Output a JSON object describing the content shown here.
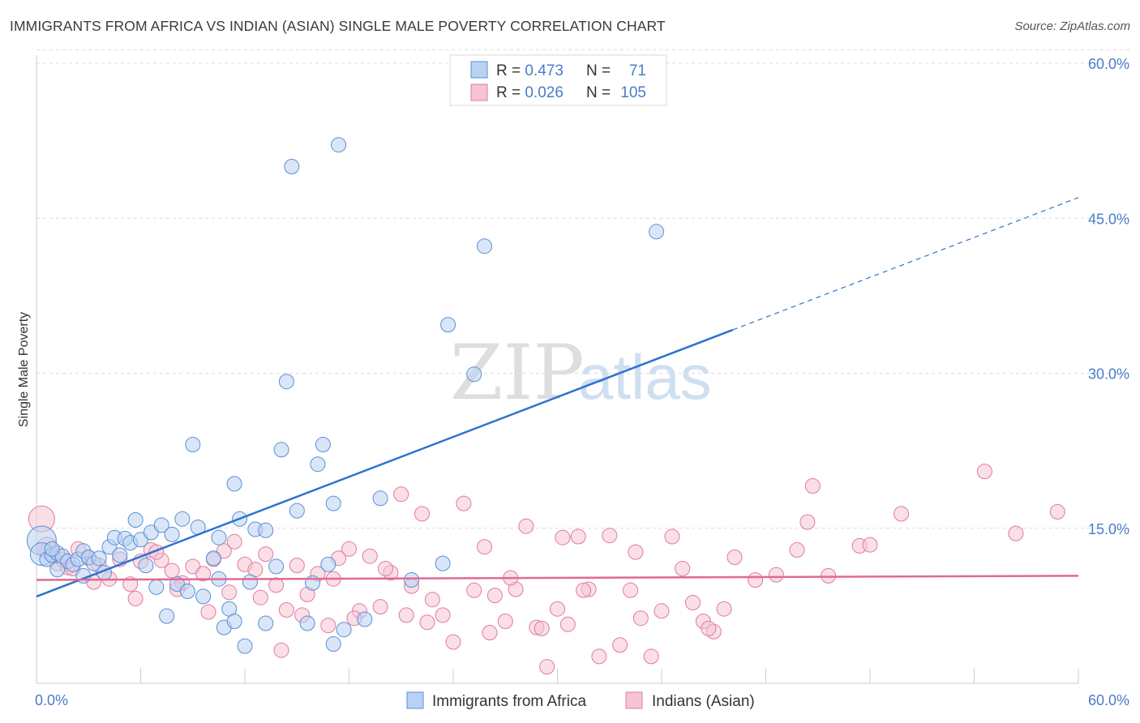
{
  "title": "IMMIGRANTS FROM AFRICA VS INDIAN (ASIAN) SINGLE MALE POVERTY CORRELATION CHART",
  "source": "Source: ZipAtlas.com",
  "watermark": {
    "zip": "ZIP",
    "atlas": "atlas"
  },
  "colors": {
    "blue": "#5b8fd6",
    "blue_fill": "#b9d1f3",
    "blue_line": "#2f72d0",
    "pink": "#e07ba0",
    "pink_fill": "#f6c4d4",
    "pink_line": "#e06a93",
    "tick_label": "#4a7cc9",
    "grid": "#dcdcdc"
  },
  "legend": {
    "rows": [
      {
        "r_label": "R = ",
        "r_value": "0.473",
        "n_label": "N = ",
        "n_value": "71",
        "color": "blue"
      },
      {
        "r_label": "R = ",
        "r_value": "0.026",
        "n_label": "N = ",
        "n_value": "105",
        "color": "pink"
      }
    ]
  },
  "chart_data": {
    "type": "scatter",
    "title": "IMMIGRANTS FROM AFRICA VS INDIAN (ASIAN) SINGLE MALE POVERTY CORRELATION CHART",
    "xlabel": "",
    "ylabel": "Single Male Poverty",
    "xlim": [
      0,
      60
    ],
    "ylim": [
      0,
      60
    ],
    "x_tick_labels": [
      "0.0%",
      "60.0%"
    ],
    "y_ticks": [
      15,
      30,
      45,
      60
    ],
    "y_tick_labels": [
      "15.0%",
      "30.0%",
      "45.0%",
      "60.0%"
    ],
    "grid": "horizontal dashed",
    "legend_position": "top-center",
    "series": [
      {
        "name": "Immigrants from Africa",
        "color": "blue",
        "R": 0.473,
        "N": 71,
        "trend": {
          "x0": 0,
          "y0": 8.4,
          "x1": 40.1,
          "y1": 34.2,
          "dash_to_x": 60,
          "dash_to_y": 47.0
        },
        "points": [
          [
            0.3,
            13.8,
            18
          ],
          [
            0.3,
            12.5,
            14
          ],
          [
            0.6,
            12.0,
            9
          ],
          [
            0.9,
            12.4,
            9
          ],
          [
            1.2,
            12.6,
            9
          ],
          [
            1.5,
            12.3,
            9
          ],
          [
            1.8,
            11.8,
            9
          ],
          [
            2.1,
            11.5,
            9
          ],
          [
            2.4,
            12.0,
            9
          ],
          [
            2.7,
            12.8,
            9
          ],
          [
            3.0,
            12.2,
            9
          ],
          [
            3.3,
            11.6,
            9
          ],
          [
            3.6,
            12.1,
            9
          ],
          [
            4.2,
            13.2,
            9
          ],
          [
            4.5,
            14.1,
            9
          ],
          [
            5.1,
            14.0,
            9
          ],
          [
            5.4,
            13.6,
            9
          ],
          [
            5.7,
            15.8,
            9
          ],
          [
            6.0,
            13.9,
            9
          ],
          [
            6.3,
            11.4,
            9
          ],
          [
            6.6,
            14.6,
            9
          ],
          [
            7.2,
            15.3,
            9
          ],
          [
            7.8,
            14.4,
            9
          ],
          [
            8.4,
            15.9,
            9
          ],
          [
            9.0,
            23.1,
            9
          ],
          [
            9.3,
            15.1,
            9
          ],
          [
            10.2,
            12.1,
            9
          ],
          [
            11.4,
            19.3,
            9
          ],
          [
            11.7,
            15.9,
            9
          ],
          [
            12.6,
            14.9,
            9
          ],
          [
            13.2,
            14.8,
            9
          ],
          [
            14.1,
            22.6,
            9
          ],
          [
            14.4,
            29.2,
            9
          ],
          [
            14.7,
            50.0,
            9
          ],
          [
            15.0,
            16.7,
            9
          ],
          [
            16.2,
            21.2,
            9
          ],
          [
            16.5,
            23.1,
            9
          ],
          [
            17.1,
            17.4,
            9
          ],
          [
            17.4,
            52.1,
            9
          ],
          [
            19.8,
            17.9,
            9
          ],
          [
            21.6,
            10.0,
            9
          ],
          [
            23.4,
            11.6,
            9
          ],
          [
            23.7,
            34.7,
            9
          ],
          [
            25.2,
            29.9,
            9
          ],
          [
            25.8,
            42.3,
            9
          ],
          [
            35.7,
            43.7,
            9
          ],
          [
            3.9,
            10.7,
            9
          ],
          [
            6.9,
            9.3,
            9
          ],
          [
            7.5,
            6.5,
            9
          ],
          [
            8.1,
            9.6,
            9
          ],
          [
            8.7,
            8.9,
            9
          ],
          [
            9.6,
            8.4,
            9
          ],
          [
            10.5,
            10.1,
            9
          ],
          [
            10.8,
            5.4,
            9
          ],
          [
            11.1,
            7.2,
            9
          ],
          [
            11.4,
            6.0,
            9
          ],
          [
            12.0,
            3.6,
            9
          ],
          [
            12.3,
            9.8,
            9
          ],
          [
            13.2,
            5.8,
            9
          ],
          [
            13.8,
            11.3,
            9
          ],
          [
            15.6,
            5.8,
            9
          ],
          [
            15.9,
            9.7,
            9
          ],
          [
            17.1,
            3.8,
            9
          ],
          [
            17.7,
            5.2,
            9
          ],
          [
            18.9,
            6.2,
            9
          ],
          [
            2.7,
            10.4,
            9
          ],
          [
            4.8,
            12.4,
            9
          ],
          [
            1.2,
            11.0,
            9
          ],
          [
            0.9,
            13.0,
            9
          ],
          [
            10.5,
            14.1,
            9
          ],
          [
            16.8,
            11.5,
            9
          ]
        ]
      },
      {
        "name": "Indians (Asian)",
        "color": "pink",
        "R": 0.026,
        "N": 105,
        "trend": {
          "x0": 0,
          "y0": 10.0,
          "x1": 60,
          "y1": 10.4
        },
        "points": [
          [
            0.3,
            15.9,
            16
          ],
          [
            0.6,
            13.1,
            13
          ],
          [
            0.9,
            12.4,
            9
          ],
          [
            1.2,
            11.6,
            9
          ],
          [
            1.5,
            12.0,
            9
          ],
          [
            1.8,
            11.2,
            9
          ],
          [
            2.4,
            13.0,
            9
          ],
          [
            3.0,
            12.1,
            9
          ],
          [
            3.6,
            11.4,
            9
          ],
          [
            4.2,
            10.1,
            9
          ],
          [
            4.8,
            12.0,
            9
          ],
          [
            5.4,
            9.6,
            9
          ],
          [
            6.0,
            11.8,
            9
          ],
          [
            6.6,
            12.9,
            9
          ],
          [
            7.2,
            11.9,
            9
          ],
          [
            7.8,
            10.9,
            9
          ],
          [
            8.4,
            9.7,
            9
          ],
          [
            9.0,
            11.3,
            9
          ],
          [
            9.6,
            10.6,
            9
          ],
          [
            10.2,
            12.0,
            9
          ],
          [
            10.8,
            12.8,
            9
          ],
          [
            11.4,
            13.7,
            9
          ],
          [
            12.0,
            11.5,
            9
          ],
          [
            12.6,
            11.0,
            9
          ],
          [
            13.2,
            12.5,
            9
          ],
          [
            13.8,
            9.5,
            9
          ],
          [
            14.4,
            7.1,
            9
          ],
          [
            15.0,
            11.4,
            9
          ],
          [
            15.6,
            8.6,
            9
          ],
          [
            16.2,
            10.6,
            9
          ],
          [
            16.8,
            5.6,
            9
          ],
          [
            17.4,
            12.1,
            9
          ],
          [
            18.0,
            13.0,
            9
          ],
          [
            18.6,
            7.0,
            9
          ],
          [
            19.2,
            12.3,
            9
          ],
          [
            19.8,
            7.4,
            9
          ],
          [
            20.4,
            10.7,
            9
          ],
          [
            21.0,
            18.3,
            9
          ],
          [
            21.6,
            9.4,
            9
          ],
          [
            22.2,
            16.4,
            9
          ],
          [
            22.8,
            8.1,
            9
          ],
          [
            23.4,
            6.6,
            9
          ],
          [
            24.0,
            4.0,
            9
          ],
          [
            24.6,
            17.4,
            9
          ],
          [
            25.2,
            9.0,
            9
          ],
          [
            25.8,
            13.2,
            9
          ],
          [
            26.4,
            8.5,
            9
          ],
          [
            27.0,
            6.0,
            9
          ],
          [
            27.6,
            9.1,
            9
          ],
          [
            28.2,
            15.2,
            9
          ],
          [
            28.8,
            5.4,
            9
          ],
          [
            29.4,
            1.6,
            9
          ],
          [
            30.0,
            7.2,
            9
          ],
          [
            30.6,
            5.7,
            9
          ],
          [
            31.2,
            14.2,
            9
          ],
          [
            31.8,
            9.1,
            9
          ],
          [
            32.4,
            2.6,
            9
          ],
          [
            33.0,
            14.3,
            9
          ],
          [
            33.6,
            3.7,
            9
          ],
          [
            34.2,
            9.0,
            9
          ],
          [
            34.8,
            6.3,
            9
          ],
          [
            35.4,
            2.6,
            9
          ],
          [
            36.0,
            7.0,
            9
          ],
          [
            36.6,
            14.2,
            9
          ],
          [
            37.2,
            11.1,
            9
          ],
          [
            37.8,
            7.8,
            9
          ],
          [
            38.4,
            6.0,
            9
          ],
          [
            39.0,
            5.0,
            9
          ],
          [
            39.6,
            7.2,
            9
          ],
          [
            40.2,
            12.2,
            9
          ],
          [
            41.4,
            10.0,
            9
          ],
          [
            42.6,
            10.5,
            9
          ],
          [
            43.8,
            12.9,
            9
          ],
          [
            44.4,
            15.6,
            9
          ],
          [
            44.7,
            19.1,
            9
          ],
          [
            45.6,
            10.4,
            9
          ],
          [
            47.4,
            13.3,
            9
          ],
          [
            48.0,
            13.4,
            9
          ],
          [
            49.8,
            16.4,
            9
          ],
          [
            54.6,
            20.5,
            9
          ],
          [
            56.4,
            14.5,
            9
          ],
          [
            58.8,
            16.6,
            9
          ],
          [
            0.6,
            12.8,
            9
          ],
          [
            2.1,
            11.1,
            9
          ],
          [
            3.3,
            9.8,
            9
          ],
          [
            5.7,
            8.2,
            9
          ],
          [
            6.9,
            12.7,
            9
          ],
          [
            8.1,
            9.1,
            9
          ],
          [
            9.9,
            6.9,
            9
          ],
          [
            11.1,
            8.8,
            9
          ],
          [
            12.9,
            8.3,
            9
          ],
          [
            14.1,
            3.2,
            9
          ],
          [
            15.3,
            6.6,
            9
          ],
          [
            17.1,
            10.1,
            9
          ],
          [
            18.3,
            6.3,
            9
          ],
          [
            20.1,
            11.1,
            9
          ],
          [
            21.3,
            6.6,
            9
          ],
          [
            22.5,
            5.9,
            9
          ],
          [
            26.1,
            4.9,
            9
          ],
          [
            27.3,
            10.2,
            9
          ],
          [
            29.1,
            5.3,
            9
          ],
          [
            30.3,
            14.1,
            9
          ],
          [
            31.5,
            9.0,
            9
          ],
          [
            34.5,
            12.7,
            9
          ],
          [
            38.7,
            5.3,
            9
          ]
        ]
      }
    ]
  },
  "bottom_legend": [
    {
      "label": "Immigrants from Africa",
      "color": "blue"
    },
    {
      "label": "Indians (Asian)",
      "color": "pink"
    }
  ]
}
